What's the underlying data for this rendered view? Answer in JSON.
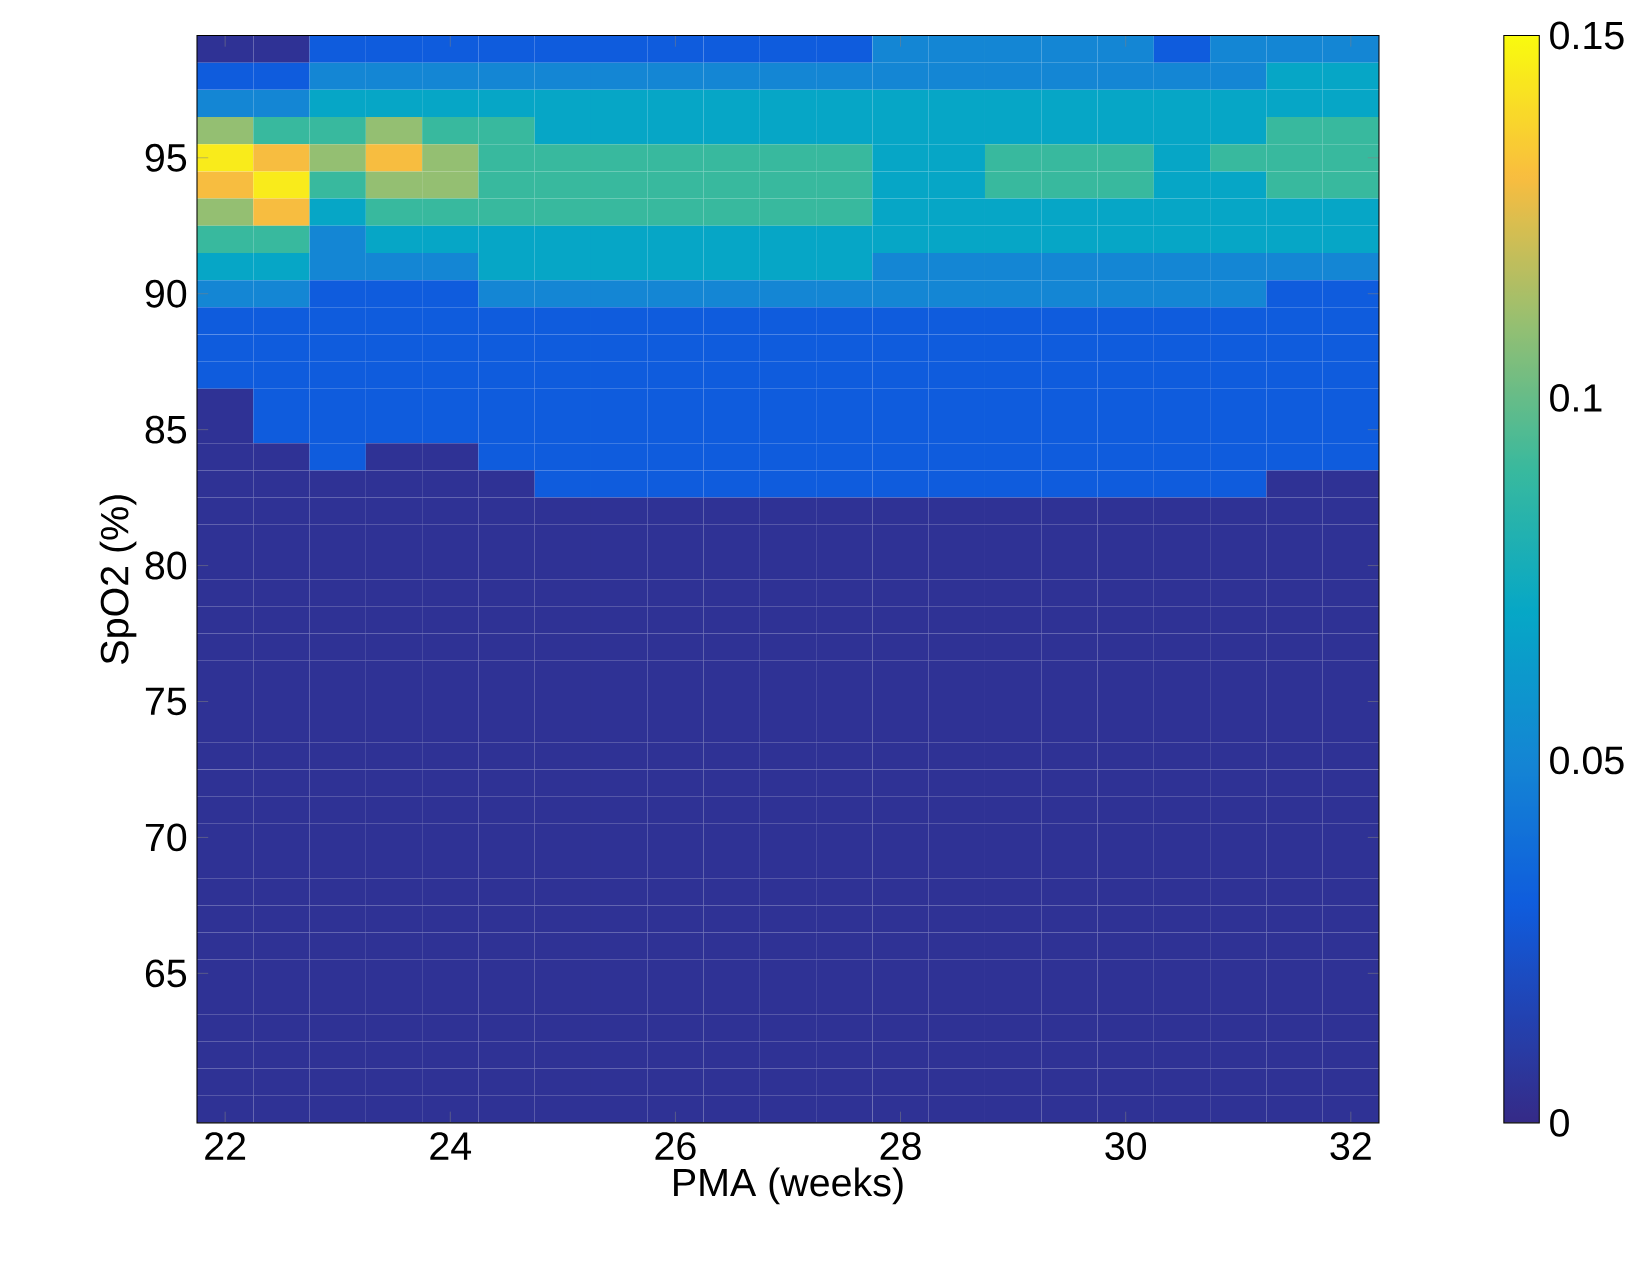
{
  "chart_data": {
    "type": "heatmap",
    "xlabel": "PMA (weeks)",
    "ylabel": "SpO2 (%)",
    "categories": [
      "22",
      null,
      null,
      null,
      "24",
      null,
      null,
      null,
      "26",
      null,
      null,
      null,
      "28",
      null,
      null,
      null,
      "30",
      null,
      null,
      null,
      "32"
    ],
    "y_categories": [
      null,
      null,
      null,
      null,
      "95",
      null,
      null,
      null,
      null,
      "90",
      null,
      null,
      null,
      null,
      "85",
      null,
      null,
      null,
      null,
      "80",
      null,
      null,
      null,
      null,
      "75",
      null,
      null,
      null,
      null,
      "70",
      null,
      null,
      null,
      null,
      "65",
      null,
      null,
      null,
      null,
      null
    ],
    "clim": [
      0,
      0.15
    ],
    "cticks": [
      0,
      0.05,
      0.1,
      0.15
    ],
    "cells": [
      [
        0.005,
        0.005,
        0.03,
        0.03,
        0.03,
        0.03,
        0.03,
        0.03,
        0.03,
        0.03,
        0.03,
        0.03,
        0.05,
        0.05,
        0.05,
        0.05,
        0.05,
        0.03,
        0.05,
        0.05,
        0.05
      ],
      [
        0.03,
        0.03,
        0.05,
        0.05,
        0.05,
        0.05,
        0.05,
        0.05,
        0.05,
        0.05,
        0.05,
        0.05,
        0.05,
        0.05,
        0.05,
        0.05,
        0.05,
        0.05,
        0.05,
        0.07,
        0.07
      ],
      [
        0.05,
        0.05,
        0.07,
        0.07,
        0.07,
        0.07,
        0.07,
        0.07,
        0.07,
        0.07,
        0.07,
        0.07,
        0.07,
        0.07,
        0.07,
        0.07,
        0.07,
        0.07,
        0.07,
        0.07,
        0.07
      ],
      [
        0.11,
        0.09,
        0.09,
        0.11,
        0.09,
        0.09,
        0.07,
        0.07,
        0.07,
        0.07,
        0.07,
        0.07,
        0.07,
        0.07,
        0.07,
        0.07,
        0.07,
        0.07,
        0.07,
        0.09,
        0.09
      ],
      [
        0.145,
        0.13,
        0.11,
        0.13,
        0.11,
        0.09,
        0.09,
        0.09,
        0.09,
        0.09,
        0.09,
        0.09,
        0.07,
        0.07,
        0.09,
        0.09,
        0.09,
        0.07,
        0.09,
        0.09,
        0.09
      ],
      [
        0.13,
        0.145,
        0.09,
        0.11,
        0.11,
        0.09,
        0.09,
        0.09,
        0.09,
        0.09,
        0.09,
        0.09,
        0.07,
        0.07,
        0.09,
        0.09,
        0.09,
        0.07,
        0.07,
        0.09,
        0.09
      ],
      [
        0.11,
        0.13,
        0.07,
        0.09,
        0.09,
        0.09,
        0.09,
        0.09,
        0.09,
        0.09,
        0.09,
        0.09,
        0.07,
        0.07,
        0.07,
        0.07,
        0.07,
        0.07,
        0.07,
        0.07,
        0.07
      ],
      [
        0.09,
        0.09,
        0.05,
        0.07,
        0.07,
        0.07,
        0.07,
        0.07,
        0.07,
        0.07,
        0.07,
        0.07,
        0.07,
        0.07,
        0.07,
        0.07,
        0.07,
        0.07,
        0.07,
        0.07,
        0.07
      ],
      [
        0.07,
        0.07,
        0.05,
        0.05,
        0.05,
        0.07,
        0.07,
        0.07,
        0.07,
        0.07,
        0.07,
        0.07,
        0.05,
        0.05,
        0.05,
        0.05,
        0.05,
        0.05,
        0.05,
        0.05,
        0.05
      ],
      [
        0.05,
        0.05,
        0.03,
        0.03,
        0.03,
        0.05,
        0.05,
        0.05,
        0.05,
        0.05,
        0.05,
        0.05,
        0.05,
        0.05,
        0.05,
        0.05,
        0.05,
        0.05,
        0.05,
        0.03,
        0.03
      ],
      [
        0.03,
        0.03,
        0.03,
        0.03,
        0.03,
        0.03,
        0.03,
        0.03,
        0.03,
        0.03,
        0.03,
        0.03,
        0.03,
        0.03,
        0.03,
        0.03,
        0.03,
        0.03,
        0.03,
        0.03,
        0.03
      ],
      [
        0.03,
        0.03,
        0.03,
        0.03,
        0.03,
        0.03,
        0.03,
        0.03,
        0.03,
        0.03,
        0.03,
        0.03,
        0.03,
        0.03,
        0.03,
        0.03,
        0.03,
        0.03,
        0.03,
        0.03,
        0.03
      ],
      [
        0.03,
        0.03,
        0.03,
        0.03,
        0.03,
        0.03,
        0.03,
        0.03,
        0.03,
        0.03,
        0.03,
        0.03,
        0.03,
        0.03,
        0.03,
        0.03,
        0.03,
        0.03,
        0.03,
        0.03,
        0.03
      ],
      [
        0.005,
        0.03,
        0.03,
        0.03,
        0.03,
        0.03,
        0.03,
        0.03,
        0.03,
        0.03,
        0.03,
        0.03,
        0.03,
        0.03,
        0.03,
        0.03,
        0.03,
        0.03,
        0.03,
        0.03,
        0.03
      ],
      [
        0.005,
        0.03,
        0.03,
        0.03,
        0.03,
        0.03,
        0.03,
        0.03,
        0.03,
        0.03,
        0.03,
        0.03,
        0.03,
        0.03,
        0.03,
        0.03,
        0.03,
        0.03,
        0.03,
        0.03,
        0.03
      ],
      [
        0.005,
        0.005,
        0.03,
        0.005,
        0.005,
        0.03,
        0.03,
        0.03,
        0.03,
        0.03,
        0.03,
        0.03,
        0.03,
        0.03,
        0.03,
        0.03,
        0.03,
        0.03,
        0.03,
        0.03,
        0.03
      ],
      [
        0.005,
        0.005,
        0.005,
        0.005,
        0.005,
        0.005,
        0.03,
        0.03,
        0.03,
        0.03,
        0.03,
        0.03,
        0.03,
        0.03,
        0.03,
        0.03,
        0.03,
        0.03,
        0.03,
        0.005,
        0.005
      ],
      [
        0.005,
        0.005,
        0.005,
        0.005,
        0.005,
        0.005,
        0.005,
        0.005,
        0.005,
        0.005,
        0.005,
        0.005,
        0.005,
        0.005,
        0.005,
        0.005,
        0.005,
        0.005,
        0.005,
        0.005,
        0.005
      ],
      [
        0.005,
        0.005,
        0.005,
        0.005,
        0.005,
        0.005,
        0.005,
        0.005,
        0.005,
        0.005,
        0.005,
        0.005,
        0.005,
        0.005,
        0.005,
        0.005,
        0.005,
        0.005,
        0.005,
        0.005,
        0.005
      ],
      [
        0.005,
        0.005,
        0.005,
        0.005,
        0.005,
        0.005,
        0.005,
        0.005,
        0.005,
        0.005,
        0.005,
        0.005,
        0.005,
        0.005,
        0.005,
        0.005,
        0.005,
        0.005,
        0.005,
        0.005,
        0.005
      ],
      [
        0.005,
        0.005,
        0.005,
        0.005,
        0.005,
        0.005,
        0.005,
        0.005,
        0.005,
        0.005,
        0.005,
        0.005,
        0.005,
        0.005,
        0.005,
        0.005,
        0.005,
        0.005,
        0.005,
        0.005,
        0.005
      ],
      [
        0.005,
        0.005,
        0.005,
        0.005,
        0.005,
        0.005,
        0.005,
        0.005,
        0.005,
        0.005,
        0.005,
        0.005,
        0.005,
        0.005,
        0.005,
        0.005,
        0.005,
        0.005,
        0.005,
        0.005,
        0.005
      ],
      [
        0.005,
        0.005,
        0.005,
        0.005,
        0.005,
        0.005,
        0.005,
        0.005,
        0.005,
        0.005,
        0.005,
        0.005,
        0.005,
        0.005,
        0.005,
        0.005,
        0.005,
        0.005,
        0.005,
        0.005,
        0.005
      ],
      [
        0.005,
        0.005,
        0.005,
        0.005,
        0.005,
        0.005,
        0.005,
        0.005,
        0.005,
        0.005,
        0.005,
        0.005,
        0.005,
        0.005,
        0.005,
        0.005,
        0.005,
        0.005,
        0.005,
        0.005,
        0.005
      ],
      [
        0.005,
        0.005,
        0.005,
        0.005,
        0.005,
        0.005,
        0.005,
        0.005,
        0.005,
        0.005,
        0.005,
        0.005,
        0.005,
        0.005,
        0.005,
        0.005,
        0.005,
        0.005,
        0.005,
        0.005,
        0.005
      ],
      [
        0.005,
        0.005,
        0.005,
        0.005,
        0.005,
        0.005,
        0.005,
        0.005,
        0.005,
        0.005,
        0.005,
        0.005,
        0.005,
        0.005,
        0.005,
        0.005,
        0.005,
        0.005,
        0.005,
        0.005,
        0.005
      ],
      [
        0.005,
        0.005,
        0.005,
        0.005,
        0.005,
        0.005,
        0.005,
        0.005,
        0.005,
        0.005,
        0.005,
        0.005,
        0.005,
        0.005,
        0.005,
        0.005,
        0.005,
        0.005,
        0.005,
        0.005,
        0.005
      ],
      [
        0.005,
        0.005,
        0.005,
        0.005,
        0.005,
        0.005,
        0.005,
        0.005,
        0.005,
        0.005,
        0.005,
        0.005,
        0.005,
        0.005,
        0.005,
        0.005,
        0.005,
        0.005,
        0.005,
        0.005,
        0.005
      ],
      [
        0.005,
        0.005,
        0.005,
        0.005,
        0.005,
        0.005,
        0.005,
        0.005,
        0.005,
        0.005,
        0.005,
        0.005,
        0.005,
        0.005,
        0.005,
        0.005,
        0.005,
        0.005,
        0.005,
        0.005,
        0.005
      ],
      [
        0.005,
        0.005,
        0.005,
        0.005,
        0.005,
        0.005,
        0.005,
        0.005,
        0.005,
        0.005,
        0.005,
        0.005,
        0.005,
        0.005,
        0.005,
        0.005,
        0.005,
        0.005,
        0.005,
        0.005,
        0.005
      ],
      [
        0.005,
        0.005,
        0.005,
        0.005,
        0.005,
        0.005,
        0.005,
        0.005,
        0.005,
        0.005,
        0.005,
        0.005,
        0.005,
        0.005,
        0.005,
        0.005,
        0.005,
        0.005,
        0.005,
        0.005,
        0.005
      ],
      [
        0.005,
        0.005,
        0.005,
        0.005,
        0.005,
        0.005,
        0.005,
        0.005,
        0.005,
        0.005,
        0.005,
        0.005,
        0.005,
        0.005,
        0.005,
        0.005,
        0.005,
        0.005,
        0.005,
        0.005,
        0.005
      ],
      [
        0.005,
        0.005,
        0.005,
        0.005,
        0.005,
        0.005,
        0.005,
        0.005,
        0.005,
        0.005,
        0.005,
        0.005,
        0.005,
        0.005,
        0.005,
        0.005,
        0.005,
        0.005,
        0.005,
        0.005,
        0.005
      ],
      [
        0.005,
        0.005,
        0.005,
        0.005,
        0.005,
        0.005,
        0.005,
        0.005,
        0.005,
        0.005,
        0.005,
        0.005,
        0.005,
        0.005,
        0.005,
        0.005,
        0.005,
        0.005,
        0.005,
        0.005,
        0.005
      ],
      [
        0.005,
        0.005,
        0.005,
        0.005,
        0.005,
        0.005,
        0.005,
        0.005,
        0.005,
        0.005,
        0.005,
        0.005,
        0.005,
        0.005,
        0.005,
        0.005,
        0.005,
        0.005,
        0.005,
        0.005,
        0.005
      ],
      [
        0.005,
        0.005,
        0.005,
        0.005,
        0.005,
        0.005,
        0.005,
        0.005,
        0.005,
        0.005,
        0.005,
        0.005,
        0.005,
        0.005,
        0.005,
        0.005,
        0.005,
        0.005,
        0.005,
        0.005,
        0.005
      ],
      [
        0.005,
        0.005,
        0.005,
        0.005,
        0.005,
        0.005,
        0.005,
        0.005,
        0.005,
        0.005,
        0.005,
        0.005,
        0.005,
        0.005,
        0.005,
        0.005,
        0.005,
        0.005,
        0.005,
        0.005,
        0.005
      ],
      [
        0.005,
        0.005,
        0.005,
        0.005,
        0.005,
        0.005,
        0.005,
        0.005,
        0.005,
        0.005,
        0.005,
        0.005,
        0.005,
        0.005,
        0.005,
        0.005,
        0.005,
        0.005,
        0.005,
        0.005,
        0.005
      ],
      [
        0.005,
        0.005,
        0.005,
        0.005,
        0.005,
        0.005,
        0.005,
        0.005,
        0.005,
        0.005,
        0.005,
        0.005,
        0.005,
        0.005,
        0.005,
        0.005,
        0.005,
        0.005,
        0.005,
        0.005,
        0.005
      ],
      [
        0.005,
        0.005,
        0.005,
        0.005,
        0.005,
        0.005,
        0.005,
        0.005,
        0.005,
        0.005,
        0.005,
        0.005,
        0.005,
        0.005,
        0.005,
        0.005,
        0.005,
        0.005,
        0.005,
        0.005,
        0.005
      ]
    ]
  }
}
